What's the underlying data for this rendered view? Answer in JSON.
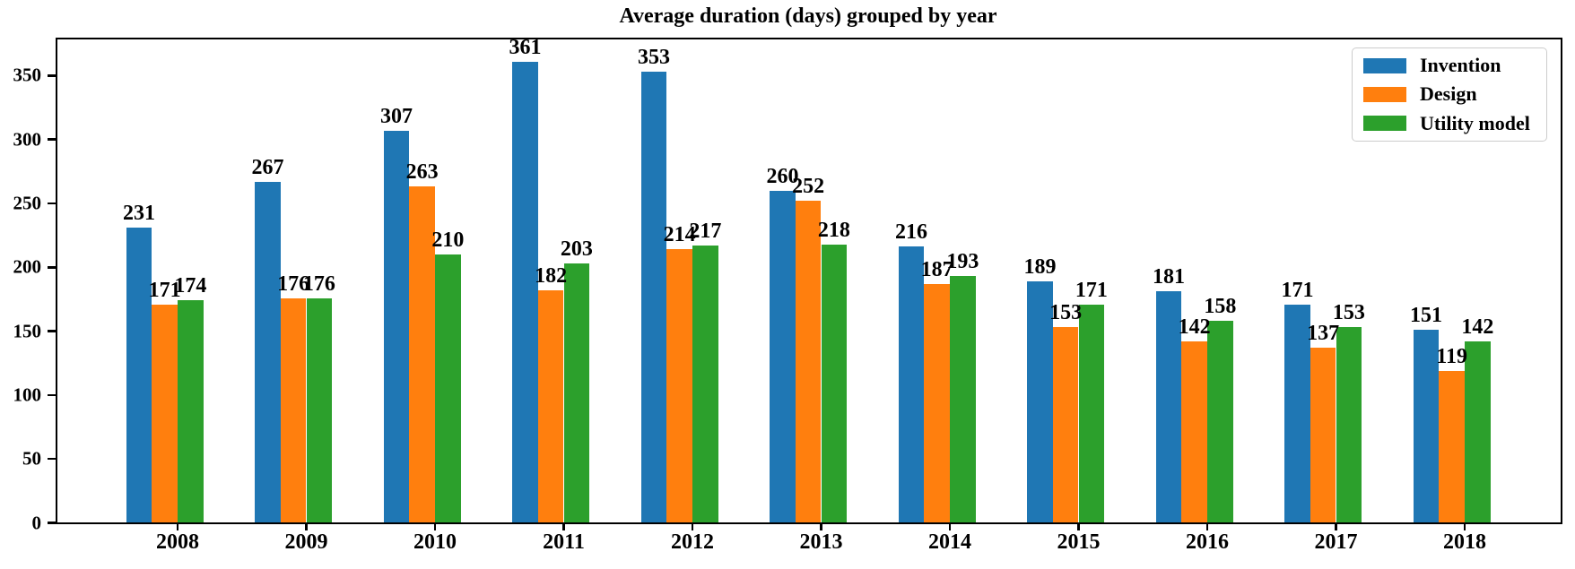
{
  "chart_data": {
    "type": "bar",
    "title": "Average duration (days) grouped by year",
    "categories": [
      "2008",
      "2009",
      "2010",
      "2011",
      "2012",
      "2013",
      "2014",
      "2015",
      "2016",
      "2017",
      "2018"
    ],
    "series": [
      {
        "name": "Invention",
        "color": "#1f77b4",
        "values": [
          231,
          267,
          307,
          361,
          353,
          260,
          216,
          189,
          181,
          171,
          151
        ]
      },
      {
        "name": "Design",
        "color": "#ff7f0e",
        "values": [
          171,
          176,
          263,
          182,
          214,
          252,
          187,
          153,
          142,
          137,
          119
        ]
      },
      {
        "name": "Utility model",
        "color": "#2ca02c",
        "values": [
          174,
          176,
          210,
          203,
          217,
          218,
          193,
          171,
          158,
          153,
          142
        ]
      }
    ],
    "xlabel": "",
    "ylabel": "",
    "ylim": [
      0,
      379
    ],
    "yticks": [
      0,
      50,
      100,
      150,
      200,
      250,
      300,
      350
    ],
    "bar_value_labels": true,
    "grid": false,
    "legend_position": "upper right",
    "axis_color": "#000000",
    "background_color": "#ffffff"
  }
}
